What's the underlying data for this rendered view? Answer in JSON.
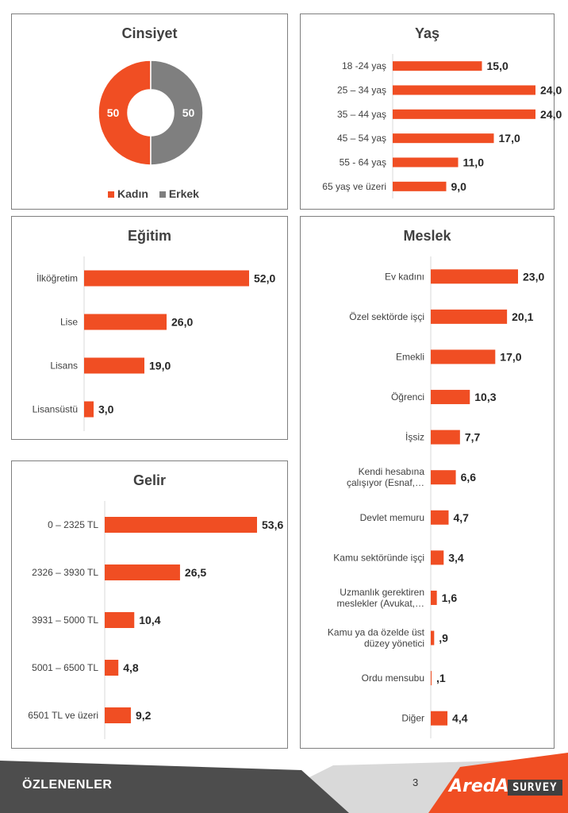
{
  "chart_data": [
    {
      "id": "cinsiyet",
      "type": "pie",
      "title": "Cinsiyet",
      "categories": [
        "Kadın",
        "Erkek"
      ],
      "values": [
        50,
        50
      ],
      "value_labels": [
        "50",
        "50"
      ],
      "colors": [
        "#f04e23",
        "#7f7f7f"
      ],
      "legend": "bottom"
    },
    {
      "id": "yas",
      "type": "bar",
      "orientation": "horizontal",
      "title": "Yaş",
      "categories": [
        [
          "18 -24 yaş"
        ],
        [
          "25 – 34 yaş"
        ],
        [
          "35 – 44 yaş"
        ],
        [
          "45 – 54 yaş"
        ],
        [
          "55 - 64 yaş"
        ],
        [
          "65 yaş ve üzeri"
        ]
      ],
      "values": [
        15.0,
        24.0,
        24.0,
        17.0,
        11.0,
        9.0
      ],
      "value_labels": [
        "15,0",
        "24,0",
        "24,0",
        "17,0",
        "11,0",
        "9,0"
      ],
      "color": "#f04e23"
    },
    {
      "id": "egitim",
      "type": "bar",
      "orientation": "horizontal",
      "title": "Eğitim",
      "categories": [
        [
          "İlköğretim"
        ],
        [
          "Lise"
        ],
        [
          "Lisans"
        ],
        [
          "Lisansüstü"
        ]
      ],
      "values": [
        52.0,
        26.0,
        19.0,
        3.0
      ],
      "value_labels": [
        "52,0",
        "26,0",
        "19,0",
        "3,0"
      ],
      "color": "#f04e23"
    },
    {
      "id": "meslek",
      "type": "bar",
      "orientation": "horizontal",
      "title": "Meslek",
      "categories": [
        [
          "Ev kadını"
        ],
        [
          "Özel sektörde işçi"
        ],
        [
          "Emekli"
        ],
        [
          "Öğrenci"
        ],
        [
          "İşsiz"
        ],
        [
          "Kendi hesabına",
          "çalışıyor (Esnaf,…"
        ],
        [
          "Devlet memuru"
        ],
        [
          "Kamu sektöründe işçi"
        ],
        [
          "Uzmanlık gerektiren",
          "meslekler (Avukat,…"
        ],
        [
          "Kamu ya da özelde üst",
          "düzey yönetici"
        ],
        [
          "Ordu mensubu"
        ],
        [
          "Diğer"
        ]
      ],
      "values": [
        23.0,
        20.1,
        17.0,
        10.3,
        7.7,
        6.6,
        4.7,
        3.4,
        1.6,
        0.9,
        0.1,
        4.4
      ],
      "value_labels": [
        "23,0",
        "20,1",
        "17,0",
        "10,3",
        "7,7",
        "6,6",
        "4,7",
        "3,4",
        "1,6",
        ",9",
        ",1",
        "4,4"
      ],
      "color": "#f04e23"
    },
    {
      "id": "gelir",
      "type": "bar",
      "orientation": "horizontal",
      "title": "Gelir",
      "categories": [
        [
          "0 – 2325 TL"
        ],
        [
          "2326 – 3930 TL"
        ],
        [
          "3931 – 5000 TL"
        ],
        [
          "5001 – 6500 TL"
        ],
        [
          "6501 TL ve üzeri"
        ]
      ],
      "values": [
        53.6,
        26.5,
        10.4,
        4.8,
        9.2
      ],
      "value_labels": [
        "53,6",
        "26,5",
        "10,4",
        "4,8",
        "9,2"
      ],
      "color": "#f04e23"
    }
  ],
  "footer": {
    "section": "ÖZLENENLER",
    "page_number": "3",
    "logo_brand": "AredA",
    "logo_product": "SURVEY",
    "colors": {
      "dark": "#4d4d4d",
      "accent": "#f04e23",
      "light": "#d9d9d9"
    }
  }
}
